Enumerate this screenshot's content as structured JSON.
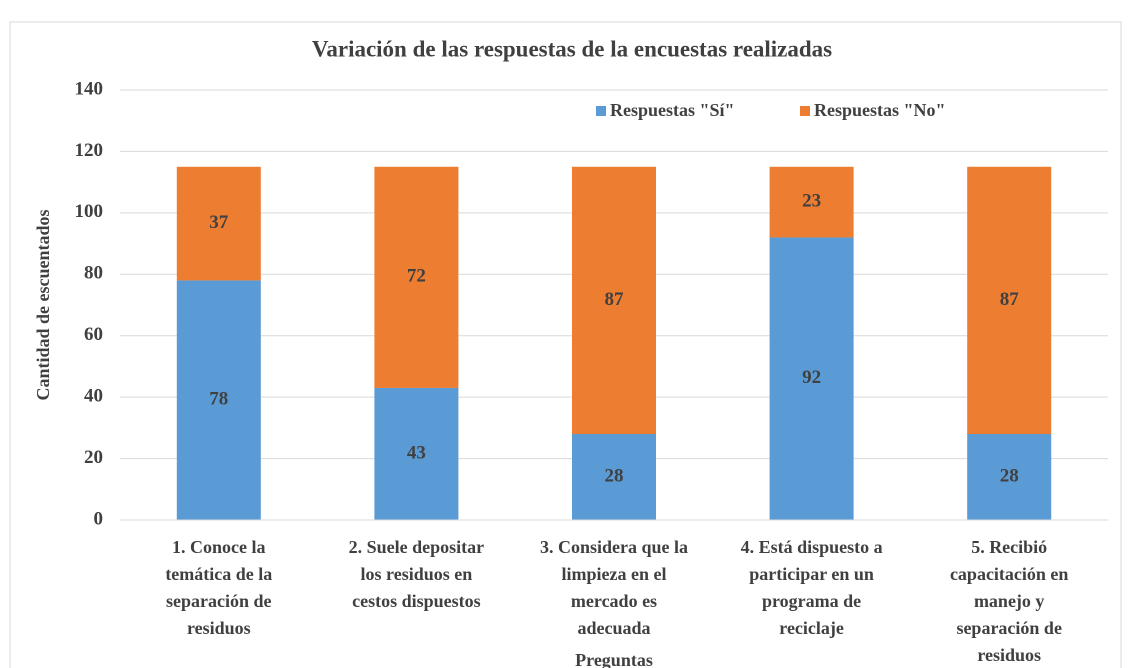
{
  "chart_data": {
    "type": "stacked_bar",
    "title": "Variación de las respuestas de la encuestas realizadas",
    "x_label": "Preguntas",
    "y_label": "Cantidad de escuentados",
    "categories": [
      [
        "1. Conoce la",
        "temática de la",
        "separación de",
        "residuos"
      ],
      [
        "2. Suele depositar",
        "los residuos en",
        "cestos dispuestos"
      ],
      [
        "3. Considera que la",
        "limpieza en el",
        "mercado es",
        "adecuada"
      ],
      [
        "4. Está dispuesto a",
        "participar en un",
        "programa de",
        "reciclaje"
      ],
      [
        "5. Recibió",
        "capacitación en",
        "manejo y",
        "separación de",
        "residuos"
      ]
    ],
    "series": [
      {
        "name": "Respuestas \"Sí\"",
        "color": "#5b9bd5",
        "values": [
          78,
          43,
          28,
          92,
          28
        ]
      },
      {
        "name": "Respuestas \"No\"",
        "color": "#ed7d31",
        "values": [
          37,
          72,
          87,
          23,
          87
        ]
      }
    ],
    "ylim": [
      0,
      140
    ],
    "yticks": [
      0,
      20,
      40,
      60,
      80,
      100,
      120,
      140
    ],
    "grid": true,
    "legend": "top"
  }
}
